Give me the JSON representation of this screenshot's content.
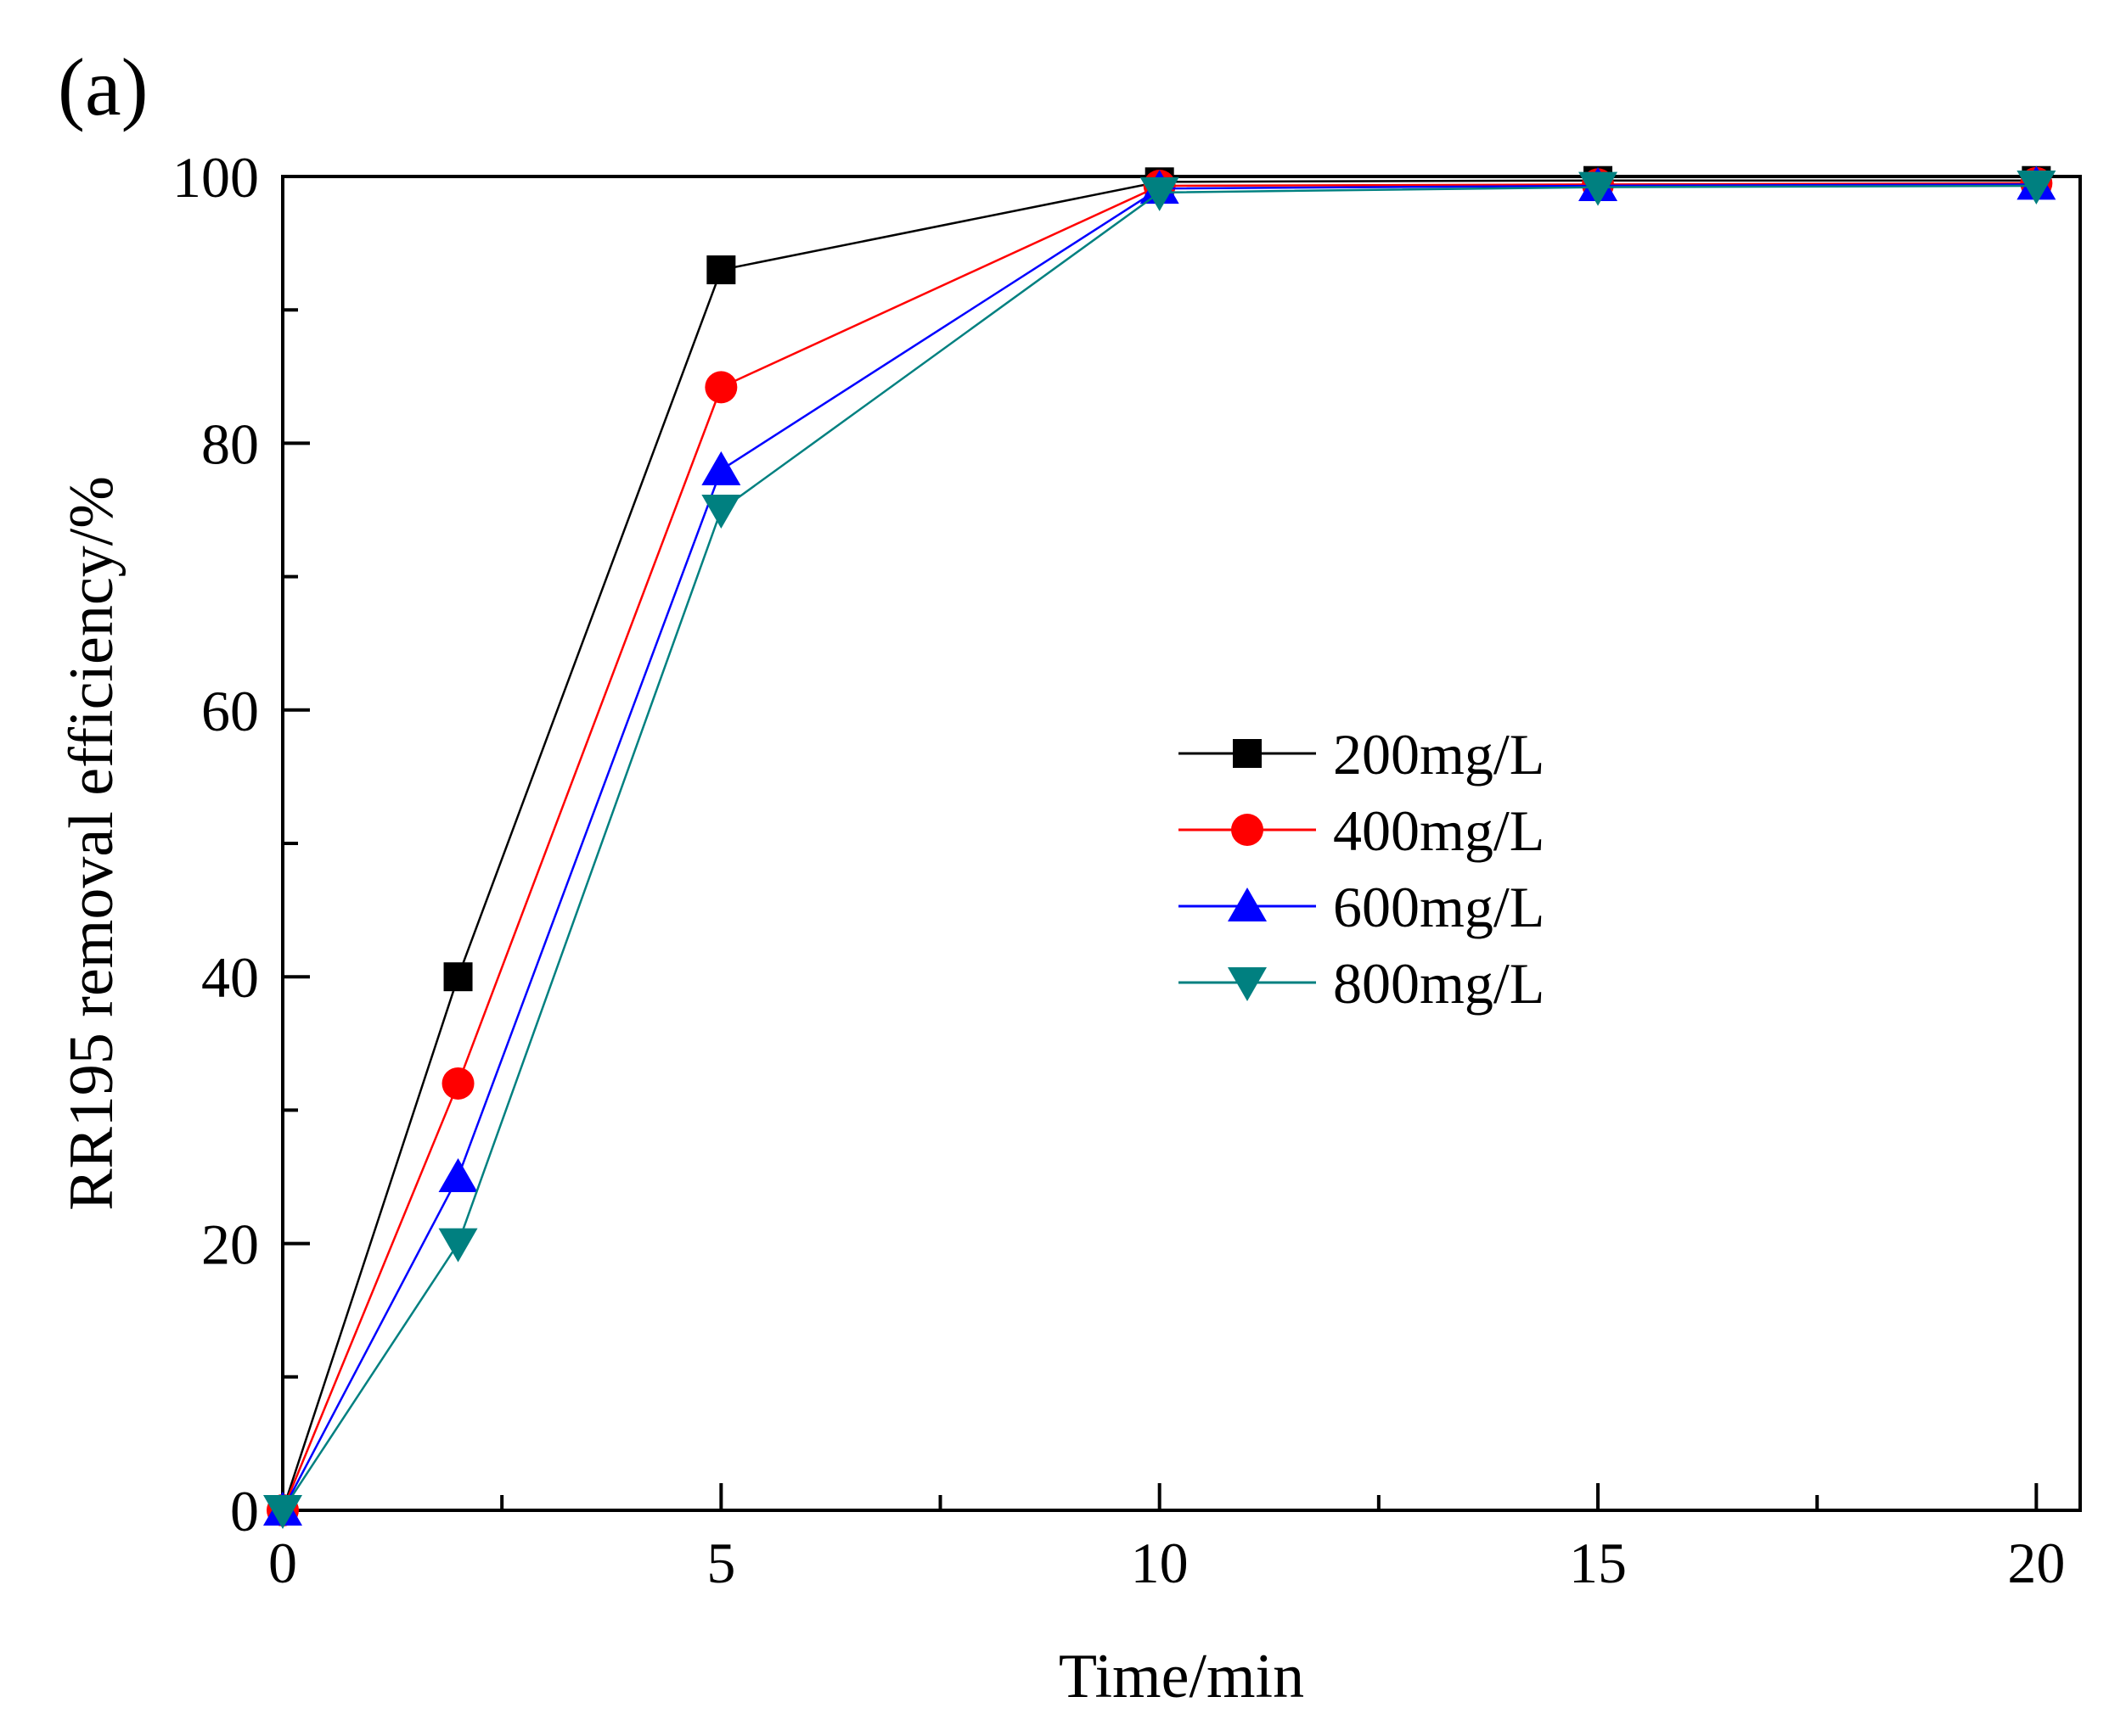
{
  "chart_data": {
    "type": "line",
    "panel_label": "(a)",
    "xlabel": "Time/min",
    "ylabel": "RR195 removal efficiency/%",
    "xlim": [
      0,
      20.5
    ],
    "ylim": [
      0,
      100
    ],
    "x_ticks": [
      0,
      5,
      10,
      15,
      20
    ],
    "y_ticks": [
      0,
      20,
      40,
      60,
      80,
      100
    ],
    "x_ticks_minor": [
      2.5,
      7.5,
      12.5,
      17.5
    ],
    "y_ticks_minor": [
      10,
      30,
      50,
      70,
      90
    ],
    "x_tick_labels": [
      "0",
      "5",
      "10",
      "15",
      "20"
    ],
    "y_tick_labels": [
      "0",
      "20",
      "40",
      "60",
      "80",
      "100"
    ],
    "grid": false,
    "legend_position": "center-right",
    "x": [
      0,
      2,
      5,
      10,
      15,
      20
    ],
    "series": [
      {
        "name": "200mg/L",
        "color": "#000000",
        "marker": "square",
        "values": [
          0,
          40,
          93,
          99.6,
          99.7,
          99.7
        ]
      },
      {
        "name": "400mg/L",
        "color": "#ff0000",
        "marker": "circle",
        "values": [
          0,
          32,
          84.2,
          99.3,
          99.4,
          99.5
        ]
      },
      {
        "name": "600mg/L",
        "color": "#0000ff",
        "marker": "triangle-up",
        "values": [
          0,
          25,
          78,
          99.1,
          99.3,
          99.4
        ]
      },
      {
        "name": "800mg/L",
        "color": "#008080",
        "marker": "triangle-down",
        "values": [
          0,
          20,
          75,
          98.8,
          99.2,
          99.3
        ]
      }
    ]
  }
}
